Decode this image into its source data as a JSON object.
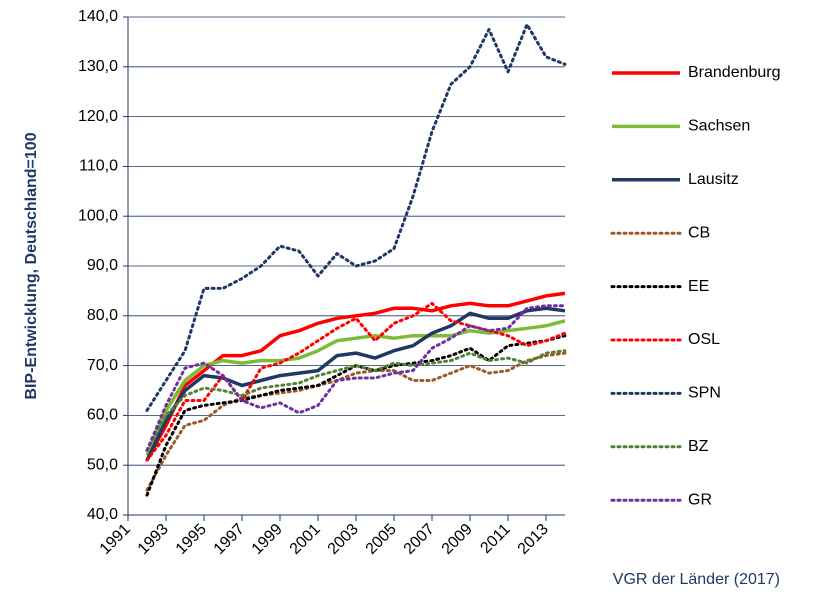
{
  "chart_data": {
    "type": "line",
    "y_label": "BIP-Entwicklung, Deutschland=100",
    "source": "VGR der Länder (2017)",
    "x": [
      1992,
      1993,
      1994,
      1995,
      1996,
      1997,
      1998,
      1999,
      2000,
      2001,
      2002,
      2003,
      2004,
      2005,
      2006,
      2007,
      2008,
      2009,
      2010,
      2011,
      2012,
      2013,
      2014
    ],
    "xlim": [
      1991,
      2014
    ],
    "xticks": [
      1991,
      1993,
      1995,
      1997,
      1999,
      2001,
      2003,
      2005,
      2007,
      2009,
      2011,
      2013
    ],
    "ylim": [
      40,
      140
    ],
    "yticks": [
      {
        "value": 40,
        "label": "40,0"
      },
      {
        "value": 50,
        "label": "50,0"
      },
      {
        "value": 60,
        "label": "60,0"
      },
      {
        "value": 70,
        "label": "70,0"
      },
      {
        "value": 80,
        "label": "80,0"
      },
      {
        "value": 90,
        "label": "90,0"
      },
      {
        "value": 100,
        "label": "100,0"
      },
      {
        "value": 110,
        "label": "110,0"
      },
      {
        "value": 120,
        "label": "120,0"
      },
      {
        "value": 130,
        "label": "130,0"
      },
      {
        "value": 140,
        "label": "140,0"
      }
    ],
    "grid": true,
    "legend": "right",
    "series": [
      {
        "name": "Brandenburg",
        "color": "#ff0000",
        "style": "solid",
        "values": [
          51,
          58,
          66,
          69,
          72,
          72,
          73,
          76,
          77,
          78.5,
          79.5,
          80,
          80.5,
          81.5,
          81.5,
          81,
          82,
          82.5,
          82,
          82,
          83,
          84,
          84.5
        ]
      },
      {
        "name": "Sachsen",
        "color": "#7dbb35",
        "style": "solid",
        "values": [
          52,
          61,
          67,
          70,
          71,
          70.5,
          71,
          71,
          71.5,
          73,
          75,
          75.5,
          76,
          75.5,
          76,
          76,
          76,
          77,
          76.5,
          77,
          77.5,
          78,
          79
        ]
      },
      {
        "name": "Lausitz",
        "color": "#1f3864",
        "style": "solid",
        "values": [
          51,
          59,
          65,
          68,
          67.5,
          66,
          67,
          68,
          68.5,
          69,
          72,
          72.5,
          71.5,
          73,
          74,
          76.5,
          78,
          80.5,
          79.5,
          79.5,
          81,
          81.5,
          81
        ]
      },
      {
        "name": "CB",
        "color": "#9c5a2a",
        "style": "dotted",
        "values": [
          45,
          52,
          58,
          59,
          62,
          63.5,
          64,
          64.5,
          65,
          66,
          67,
          68.5,
          69,
          69,
          67,
          67,
          68.5,
          70,
          68.5,
          69,
          71,
          72,
          72.5
        ]
      },
      {
        "name": "EE",
        "color": "#000000",
        "style": "dotted",
        "values": [
          44,
          54,
          61,
          62,
          62.5,
          63,
          64,
          65,
          65.5,
          66,
          68,
          70,
          69,
          70,
          70.5,
          71,
          72,
          73.5,
          71,
          74,
          74.5,
          75,
          76
        ]
      },
      {
        "name": "OSL",
        "color": "#ff0000",
        "style": "dotted",
        "values": [
          51,
          56,
          63,
          63,
          68,
          63,
          69.5,
          70.5,
          72.5,
          75,
          77.5,
          79.5,
          75,
          78.5,
          80,
          82.5,
          79,
          78,
          77,
          76,
          74,
          75,
          76.5
        ]
      },
      {
        "name": "SPN",
        "color": "#1f3864",
        "style": "dotted",
        "values": [
          61,
          67,
          73,
          85.5,
          85.5,
          87.5,
          90,
          94,
          93,
          88,
          92.5,
          90,
          91,
          93.5,
          104,
          117,
          126.5,
          130,
          137.5,
          129,
          138.5,
          132,
          130.5
        ]
      },
      {
        "name": "BZ",
        "color": "#548235",
        "style": "dotted",
        "values": [
          53,
          60,
          64,
          65.5,
          65,
          64,
          65.5,
          66,
          66.5,
          68,
          69,
          70,
          69,
          70.5,
          70,
          70.5,
          71,
          72.5,
          71,
          71.5,
          70.5,
          72.5,
          73
        ]
      },
      {
        "name": "GR",
        "color": "#7030a0",
        "style": "dotted",
        "values": [
          53,
          62,
          69.5,
          70.5,
          68,
          63,
          61.5,
          62.5,
          60.5,
          62,
          67,
          67.5,
          67.5,
          68.5,
          69,
          73.5,
          75.5,
          78,
          77,
          77.5,
          81.5,
          82,
          82
        ]
      }
    ]
  }
}
